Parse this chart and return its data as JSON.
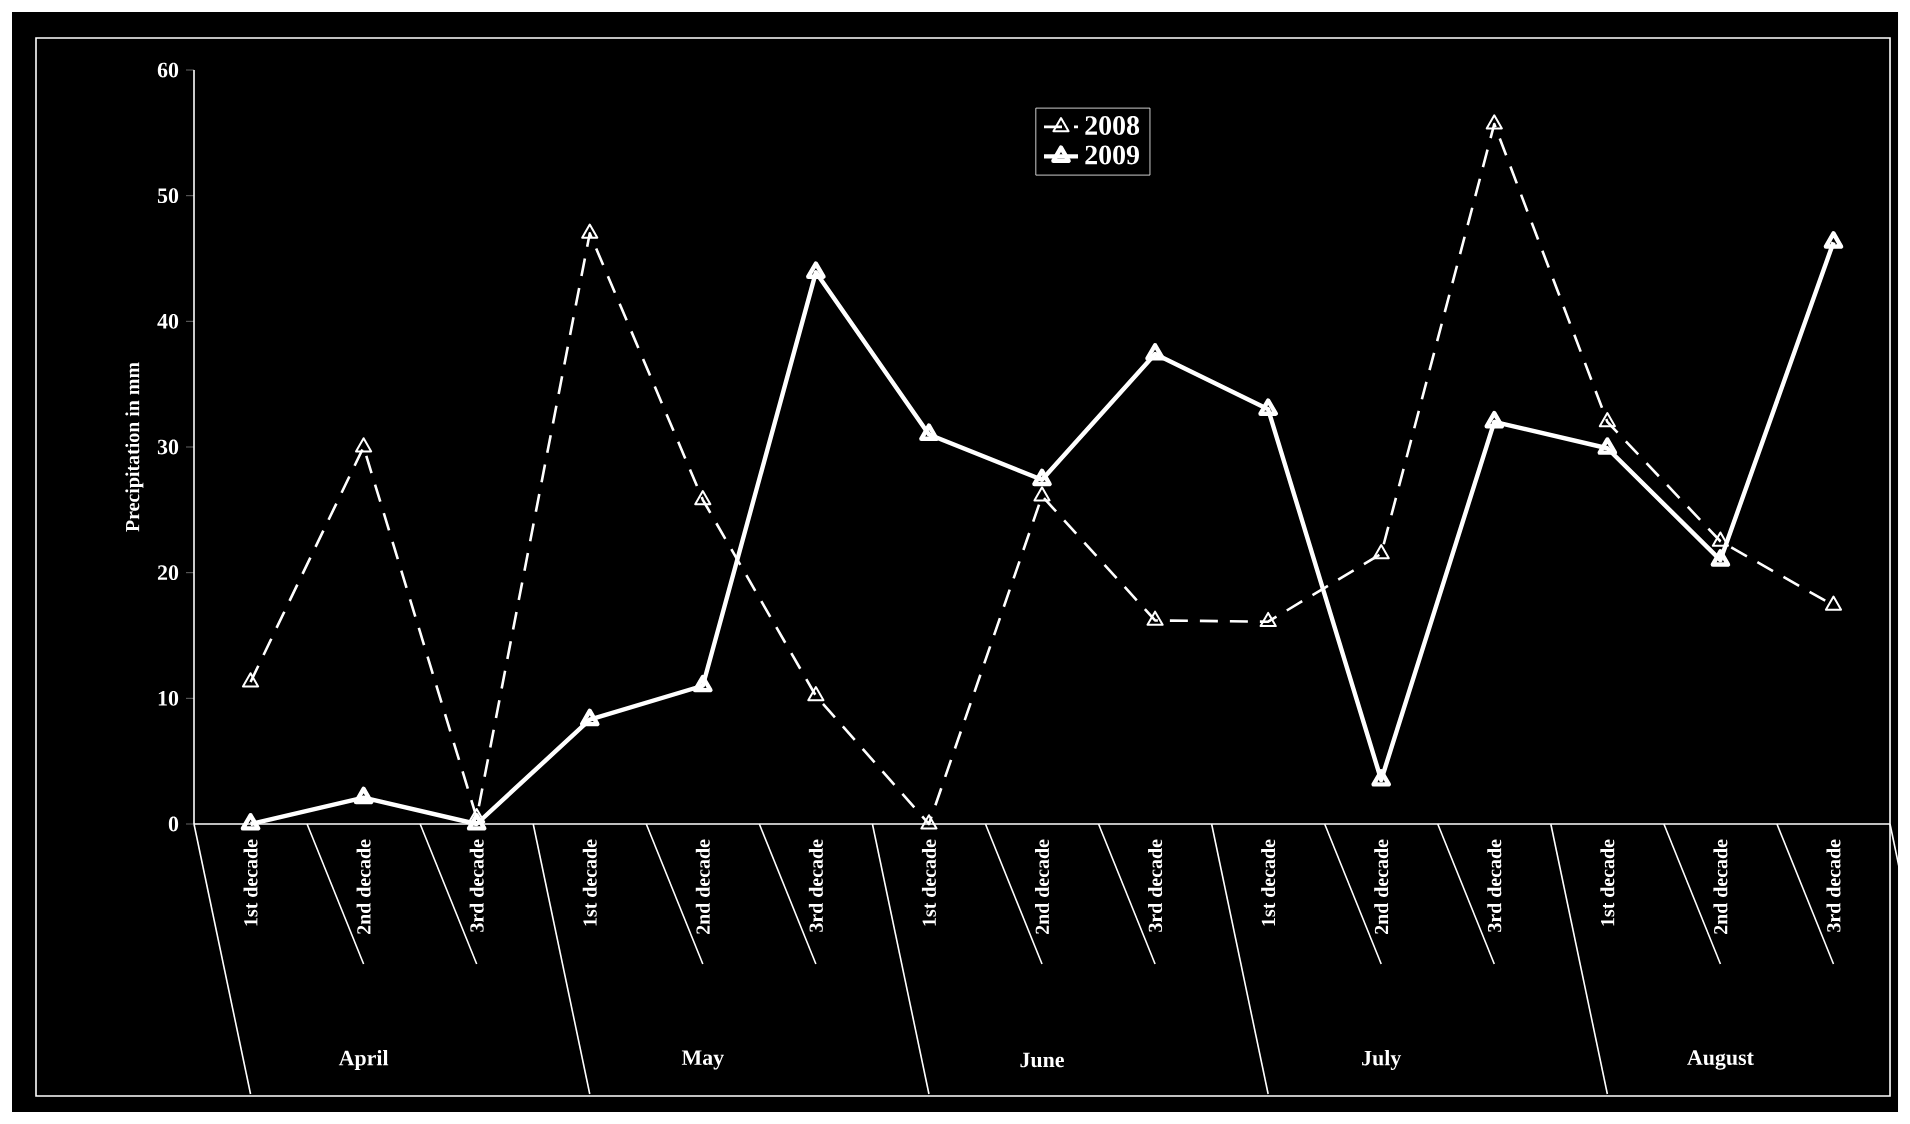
{
  "chart_data": {
    "type": "line",
    "ylabel": "Precipitation in mm",
    "categories": [
      "1st decade",
      "2nd decade",
      "3rd decade",
      "1st decade",
      "2nd decade",
      "3rd decade",
      "1st decade",
      "2nd decade",
      "3rd decade",
      "1st decade",
      "2nd decade",
      "3rd decade",
      "1st decade",
      "2nd decade",
      "3rd decade"
    ],
    "annotations": [
      "April",
      "May",
      "June",
      "July",
      "August"
    ],
    "series": [
      {
        "name": "2008",
        "color": "#ffffff",
        "line_style": "dashed",
        "values": [
          11.3,
          30,
          0.5,
          47,
          25.8,
          10.2,
          0,
          26.1,
          16.2,
          16.1,
          21.5,
          55.7,
          32,
          22.5,
          17.4
        ]
      },
      {
        "name": "2009",
        "color": "#ffffff",
        "line_style": "solid",
        "values": [
          0,
          2.1,
          0,
          8.3,
          11,
          43.9,
          31,
          27.4,
          37.4,
          33,
          3.5,
          32,
          29.9,
          21,
          46.3
        ]
      }
    ],
    "ylim": [
      0,
      60
    ],
    "yticks": [
      0,
      10,
      20,
      30,
      40,
      50,
      60
    ],
    "grid": false,
    "legend": "top",
    "marker": "triangle"
  }
}
